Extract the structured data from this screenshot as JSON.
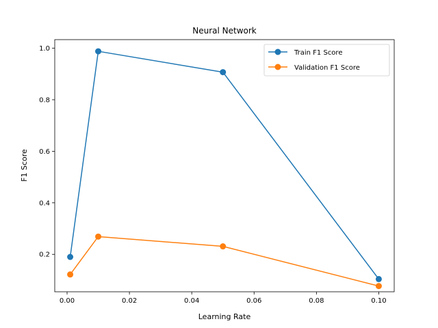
{
  "chart_data": {
    "type": "line",
    "title": "Neural Network",
    "xlabel": "Learning Rate",
    "ylabel": "F1 Score",
    "x": [
      0.001,
      0.01,
      0.05,
      0.1
    ],
    "xlim": [
      -0.003955,
      0.104955
    ],
    "ylim": [
      0.05475,
      1.03325
    ],
    "xticks": [
      0.0,
      0.02,
      0.04,
      0.06,
      0.08,
      0.1
    ],
    "xtick_labels": [
      "0.00",
      "0.02",
      "0.04",
      "0.06",
      "0.08",
      "0.10"
    ],
    "yticks": [
      0.2,
      0.4,
      0.6,
      0.8,
      1.0
    ],
    "ytick_labels": [
      "0.2",
      "0.4",
      "0.6",
      "0.8",
      "1.0"
    ],
    "grid": false,
    "legend_position": "top-right",
    "series": [
      {
        "name": "Train F1 Score",
        "color": "#1f77b4",
        "values": [
          0.19,
          0.988,
          0.907,
          0.104
        ]
      },
      {
        "name": "Validation F1 Score",
        "color": "#ff7f0e",
        "values": [
          0.122,
          0.269,
          0.231,
          0.077
        ]
      }
    ]
  }
}
